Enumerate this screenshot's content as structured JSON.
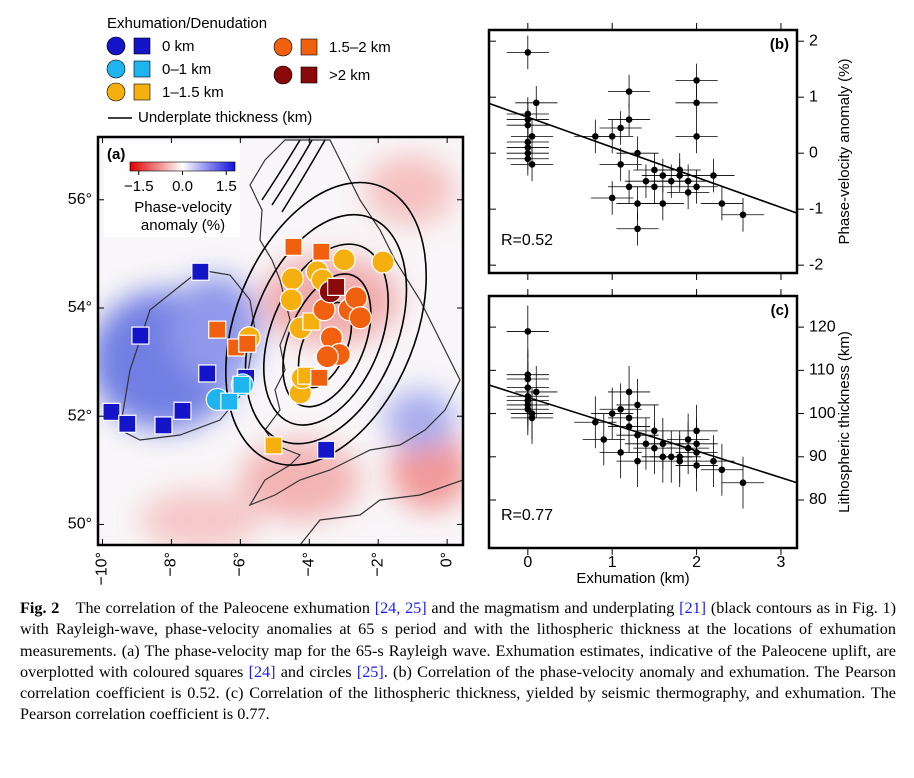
{
  "legend": {
    "title": "Exhumation/Denudation",
    "classes": [
      {
        "label": "0 km",
        "color": "#1414c8"
      },
      {
        "label": "0–1 km",
        "color": "#1eb4f0"
      },
      {
        "label": "1–1.5 km",
        "color": "#f5b00f"
      },
      {
        "label": "1.5–2 km",
        "color": "#f0600f"
      },
      {
        "label": ">2 km",
        "color": "#8a0a0a"
      }
    ],
    "contour_label": "Underplate thickness (km)"
  },
  "map": {
    "panel_label": "(a)",
    "colorbar": {
      "ticks": [
        {
          "value": -1.5,
          "label": "−1.5"
        },
        {
          "value": 0,
          "label": "0.0"
        },
        {
          "value": 1.5,
          "label": "1.5"
        }
      ],
      "range": [
        -1.8,
        1.8
      ],
      "title_lines": [
        "Phase-velocity",
        "anomaly (%)"
      ]
    },
    "lonlim": [
      -10.13,
      0.46
    ],
    "latlim": [
      49.62,
      57.16
    ],
    "lon_ticks": [
      {
        "value": -10,
        "label": "−10°"
      },
      {
        "value": -8,
        "label": "−8°"
      },
      {
        "value": -6,
        "label": "−6°"
      },
      {
        "value": -4,
        "label": "−4°"
      },
      {
        "value": -2,
        "label": "−2°"
      },
      {
        "value": 0,
        "label": "0°"
      }
    ],
    "lat_ticks": [
      {
        "value": 50,
        "label": "50°"
      },
      {
        "value": 52,
        "label": "52°"
      },
      {
        "value": 54,
        "label": "54°"
      },
      {
        "value": 56,
        "label": "56°"
      }
    ],
    "sites": [
      {
        "lon": -7.16,
        "lat": 54.67,
        "shape": "square",
        "class": 0
      },
      {
        "lon": -8.9,
        "lat": 53.49,
        "shape": "square",
        "class": 0
      },
      {
        "lon": -9.74,
        "lat": 52.08,
        "shape": "square",
        "class": 0
      },
      {
        "lon": -9.28,
        "lat": 51.86,
        "shape": "square",
        "class": 0
      },
      {
        "lon": -8.23,
        "lat": 51.83,
        "shape": "square",
        "class": 0
      },
      {
        "lon": -7.68,
        "lat": 52.1,
        "shape": "square",
        "class": 0
      },
      {
        "lon": -6.96,
        "lat": 52.79,
        "shape": "square",
        "class": 0
      },
      {
        "lon": -5.83,
        "lat": 52.71,
        "shape": "square",
        "class": 0
      },
      {
        "lon": -3.51,
        "lat": 51.38,
        "shape": "square",
        "class": 0
      },
      {
        "lon": -6.67,
        "lat": 52.31,
        "shape": "circle",
        "class": 1
      },
      {
        "lon": -5.94,
        "lat": 52.58,
        "shape": "circle",
        "class": 1
      },
      {
        "lon": -6.32,
        "lat": 52.27,
        "shape": "square",
        "class": 1
      },
      {
        "lon": -5.97,
        "lat": 52.58,
        "shape": "square",
        "class": 1
      },
      {
        "lon": -5.74,
        "lat": 53.45,
        "shape": "circle",
        "class": 2
      },
      {
        "lon": -4.49,
        "lat": 54.54,
        "shape": "circle",
        "class": 2
      },
      {
        "lon": -4.52,
        "lat": 54.15,
        "shape": "circle",
        "class": 2
      },
      {
        "lon": -3.77,
        "lat": 54.67,
        "shape": "circle",
        "class": 2
      },
      {
        "lon": -2.99,
        "lat": 54.89,
        "shape": "circle",
        "class": 2
      },
      {
        "lon": -1.86,
        "lat": 54.85,
        "shape": "circle",
        "class": 2
      },
      {
        "lon": -4.26,
        "lat": 53.63,
        "shape": "circle",
        "class": 2
      },
      {
        "lon": -4.26,
        "lat": 52.43,
        "shape": "circle",
        "class": 2
      },
      {
        "lon": -4.2,
        "lat": 52.71,
        "shape": "circle",
        "class": 2
      },
      {
        "lon": -3.62,
        "lat": 54.52,
        "shape": "circle",
        "class": 2
      },
      {
        "lon": -5.04,
        "lat": 51.46,
        "shape": "square",
        "class": 2
      },
      {
        "lon": -3.94,
        "lat": 53.75,
        "shape": "square",
        "class": 2
      },
      {
        "lon": -4.09,
        "lat": 52.75,
        "shape": "square",
        "class": 2
      },
      {
        "lon": -2.84,
        "lat": 53.97,
        "shape": "circle",
        "class": 3
      },
      {
        "lon": -2.64,
        "lat": 54.19,
        "shape": "circle",
        "class": 3
      },
      {
        "lon": -2.52,
        "lat": 53.82,
        "shape": "circle",
        "class": 3
      },
      {
        "lon": -3.36,
        "lat": 53.45,
        "shape": "circle",
        "class": 3
      },
      {
        "lon": -3.13,
        "lat": 53.14,
        "shape": "circle",
        "class": 3
      },
      {
        "lon": -3.48,
        "lat": 53.1,
        "shape": "circle",
        "class": 3
      },
      {
        "lon": -3.57,
        "lat": 53.97,
        "shape": "circle",
        "class": 3
      },
      {
        "lon": -6.67,
        "lat": 53.6,
        "shape": "square",
        "class": 3
      },
      {
        "lon": -6.12,
        "lat": 53.27,
        "shape": "square",
        "class": 3
      },
      {
        "lon": -5.8,
        "lat": 53.34,
        "shape": "square",
        "class": 3
      },
      {
        "lon": -4.46,
        "lat": 55.13,
        "shape": "square",
        "class": 3
      },
      {
        "lon": -3.65,
        "lat": 55.04,
        "shape": "square",
        "class": 3
      },
      {
        "lon": -3.71,
        "lat": 52.71,
        "shape": "square",
        "class": 3
      },
      {
        "lon": -3.39,
        "lat": 54.3,
        "shape": "circle",
        "class": 4
      },
      {
        "lon": -3.22,
        "lat": 54.39,
        "shape": "square",
        "class": 4
      }
    ]
  },
  "chart_data": [
    {
      "type": "scatter",
      "panel_label": "(b)",
      "annotation": "R=0.52",
      "ylabel": "Phase-velocity anomaly (%)",
      "color": "#000000",
      "x": [
        0,
        0,
        0,
        0,
        0,
        0,
        0,
        0.05,
        0.1,
        0.05,
        0,
        0.8,
        1,
        1.1,
        1.2,
        1.3,
        1.5,
        1.2,
        1,
        1.2,
        1.1,
        1.3,
        1.4,
        1.5,
        1.6,
        1.7,
        1.8,
        1.9,
        2,
        2,
        2,
        2,
        1.8,
        2.2,
        2.3,
        2.55,
        1.3,
        1.6,
        1.9
      ],
      "values": [
        1.8,
        0.5,
        0.6,
        0.2,
        0.1,
        0,
        -0.1,
        0.3,
        0.9,
        -0.2,
        0.7,
        0.3,
        0.3,
        0.45,
        0.6,
        0,
        -0.3,
        1.1,
        -0.8,
        -0.6,
        -0.2,
        -1.35,
        -0.5,
        -0.6,
        -0.4,
        -0.5,
        -0.3,
        -0.5,
        -0.6,
        1.3,
        0.9,
        0.3,
        -0.4,
        -0.4,
        -0.9,
        -1.1,
        -0.9,
        -0.9,
        -0.7
      ],
      "xerr": 0.25,
      "yerr": 0.3,
      "fit": {
        "x": [
          -0.46,
          3.19
        ],
        "y": [
          0.89,
          -1.07
        ]
      },
      "xlim": [
        -0.46,
        3.19
      ],
      "ylim": [
        -2.14,
        2.2
      ],
      "xticks": [
        0,
        1,
        2,
        3
      ],
      "yticks": [
        -2,
        -1,
        0,
        1,
        2
      ]
    },
    {
      "type": "scatter",
      "panel_label": "(c)",
      "annotation": "R=0.77",
      "ylabel": "Lithospheric thickness (km)",
      "xlabel": "Exhumation (km)",
      "color": "#000000",
      "x": [
        0,
        0,
        0,
        0,
        0,
        0,
        0,
        0.05,
        0.1,
        0,
        0.05,
        0.8,
        1,
        1.1,
        1.2,
        1.3,
        1.5,
        1.2,
        0.9,
        1.2,
        1.1,
        1.3,
        1.4,
        1.5,
        1.6,
        1.7,
        1.8,
        1.9,
        2,
        2,
        2,
        2,
        1.8,
        2.2,
        2.3,
        2.55,
        1.3,
        1.6,
        1.9
      ],
      "values": [
        119,
        108,
        106,
        104,
        103,
        102,
        101,
        100,
        105,
        109,
        99,
        98,
        100,
        101,
        99,
        102,
        96,
        105,
        94,
        97,
        91,
        89,
        93,
        92,
        93,
        90,
        89,
        92,
        93,
        96,
        91,
        88,
        90,
        89,
        87,
        84,
        95,
        90,
        94
      ],
      "xerr": 0.25,
      "yerr": 6,
      "fit": {
        "x": [
          -0.46,
          3.19
        ],
        "y": [
          106.6,
          84
        ]
      },
      "xlim": [
        -0.46,
        3.19
      ],
      "ylim": [
        68.9,
        127.2
      ],
      "xticks": [
        0,
        1,
        2,
        3
      ],
      "yticks": [
        80,
        90,
        100,
        110,
        120
      ]
    }
  ],
  "caption": {
    "label": "Fig. 2",
    "segments": [
      {
        "text": "The correlation of the Paleocene exhumation "
      },
      {
        "text": "[24, 25]",
        "cite": true
      },
      {
        "text": " and the magmatism and underplating "
      },
      {
        "text": "[21]",
        "cite": true
      },
      {
        "text": " (black contours as in Fig. 1) with Rayleigh-wave, phase-velocity anomalies at 65 s period and with the lithospheric thickness at the locations of exhumation measurements. (a) The phase-velocity map for the 65-s Rayleigh wave. Exhumation estimates, indicative of the Paleocene uplift, are overplotted with coloured squares "
      },
      {
        "text": "[24]",
        "cite": true
      },
      {
        "text": " and circles "
      },
      {
        "text": "[25]",
        "cite": true
      },
      {
        "text": ". (b) Correlation of the phase-velocity anomaly and exhumation. The Pearson correlation coefficient is 0.52. (c) Correlation of the lithospheric thickness, yielded by seismic thermography, and exhumation. The Pearson correlation coefficient is 0.77."
      }
    ]
  }
}
